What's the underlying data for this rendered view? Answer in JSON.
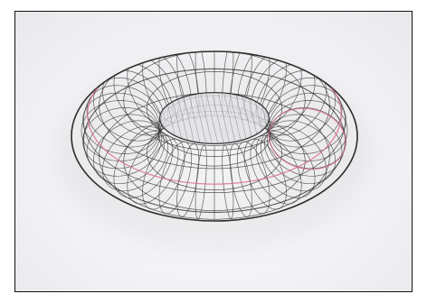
{
  "artwork": {
    "subject": "torus-wireframe-sketch",
    "colors": {
      "paper": "#f1f1f3",
      "pencil": "#2c2c2c",
      "accent": "#d96b8c",
      "frame": "#111111"
    }
  }
}
